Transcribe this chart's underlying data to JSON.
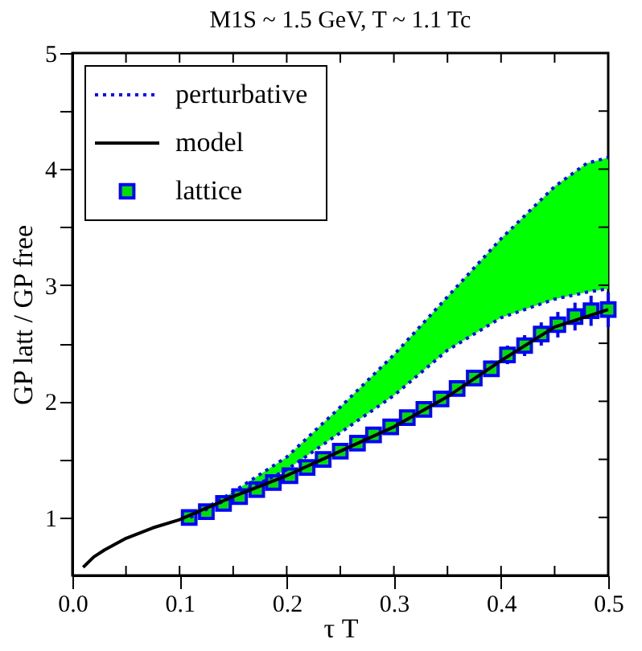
{
  "chart_data": {
    "type": "line",
    "title": "M1S ~ 1.5 GeV, T ~ 1.1 Tc",
    "xlabel": "τ T",
    "ylabel": "GP latt / GP free",
    "xlim": [
      0,
      0.5
    ],
    "ylim": [
      0.5,
      5
    ],
    "xticks": [
      {
        "value": 0,
        "label": "0.0"
      },
      {
        "value": 0.05,
        "label": null
      },
      0.1,
      {
        "value": 0.15,
        "label": null
      },
      0.2,
      {
        "value": 0.25,
        "label": null
      },
      0.3,
      {
        "value": 0.35,
        "label": null
      },
      0.4,
      {
        "value": 0.45,
        "label": null
      },
      0.5
    ],
    "yticks": [
      1,
      {
        "value": 1.5,
        "label": null
      },
      2,
      {
        "value": 2.5,
        "label": null
      },
      3,
      {
        "value": 3.5,
        "label": null
      },
      4,
      {
        "value": 4.5,
        "label": null
      },
      5
    ],
    "grid": false,
    "legend": "top left",
    "series": [
      {
        "name": "perturbative",
        "line_style": "dotted",
        "color": "#0000ff",
        "marker": "none",
        "x": [
          0.11,
          0.15,
          0.2,
          0.25,
          0.3,
          0.35,
          0.4,
          0.45,
          0.48,
          0.5
        ],
        "values": [
          1.0,
          1.22,
          1.52,
          1.95,
          2.4,
          2.9,
          3.4,
          3.85,
          4.05,
          4.1
        ],
        "lower": [
          1.0,
          1.18,
          1.41,
          1.73,
          2.05,
          2.44,
          2.72,
          2.88,
          2.94,
          2.97
        ],
        "upper": [
          1.0,
          1.22,
          1.52,
          1.95,
          2.4,
          2.9,
          3.4,
          3.85,
          4.05,
          4.1
        ]
      },
      {
        "line_style": "dotted",
        "color": "#0000ff",
        "marker": "none",
        "x": [
          0.11,
          0.15,
          0.2,
          0.25,
          0.3,
          0.35,
          0.4,
          0.45,
          0.48,
          0.5
        ],
        "values": [
          1.0,
          1.18,
          1.41,
          1.73,
          2.05,
          2.44,
          2.72,
          2.88,
          2.94,
          2.97
        ]
      },
      {
        "name": "model",
        "line_style": "solid",
        "color": "#000000",
        "marker": "none",
        "x": [
          0.01,
          0.02,
          0.03,
          0.05,
          0.075,
          0.1,
          0.15,
          0.2,
          0.25,
          0.3,
          0.35,
          0.4,
          0.45,
          0.5
        ],
        "values": [
          0.57,
          0.66,
          0.72,
          0.82,
          0.91,
          0.98,
          1.18,
          1.36,
          1.57,
          1.78,
          2.04,
          2.35,
          2.64,
          2.79
        ]
      },
      {
        "name": "lattice",
        "type": "scatter",
        "marker": "square",
        "color": "#00e000",
        "x": [
          0.109,
          0.125,
          0.141,
          0.156,
          0.172,
          0.1875,
          0.203,
          0.219,
          0.234,
          0.25,
          0.266,
          0.281,
          0.297,
          0.3125,
          0.328,
          0.344,
          0.359,
          0.375,
          0.391,
          0.406,
          0.422,
          0.4375,
          0.453,
          0.469,
          0.484,
          0.5
        ],
        "values": [
          1.0,
          1.05,
          1.12,
          1.18,
          1.24,
          1.3,
          1.36,
          1.43,
          1.5,
          1.57,
          1.64,
          1.71,
          1.78,
          1.86,
          1.93,
          2.02,
          2.11,
          2.2,
          2.28,
          2.4,
          2.48,
          2.58,
          2.66,
          2.73,
          2.78,
          2.79
        ],
        "errors": [
          0.01,
          0.01,
          0.01,
          0.01,
          0.01,
          0.01,
          0.02,
          0.02,
          0.02,
          0.02,
          0.03,
          0.03,
          0.03,
          0.04,
          0.04,
          0.05,
          0.06,
          0.06,
          0.07,
          0.08,
          0.09,
          0.1,
          0.11,
          0.12,
          0.13,
          0.15
        ]
      }
    ]
  }
}
